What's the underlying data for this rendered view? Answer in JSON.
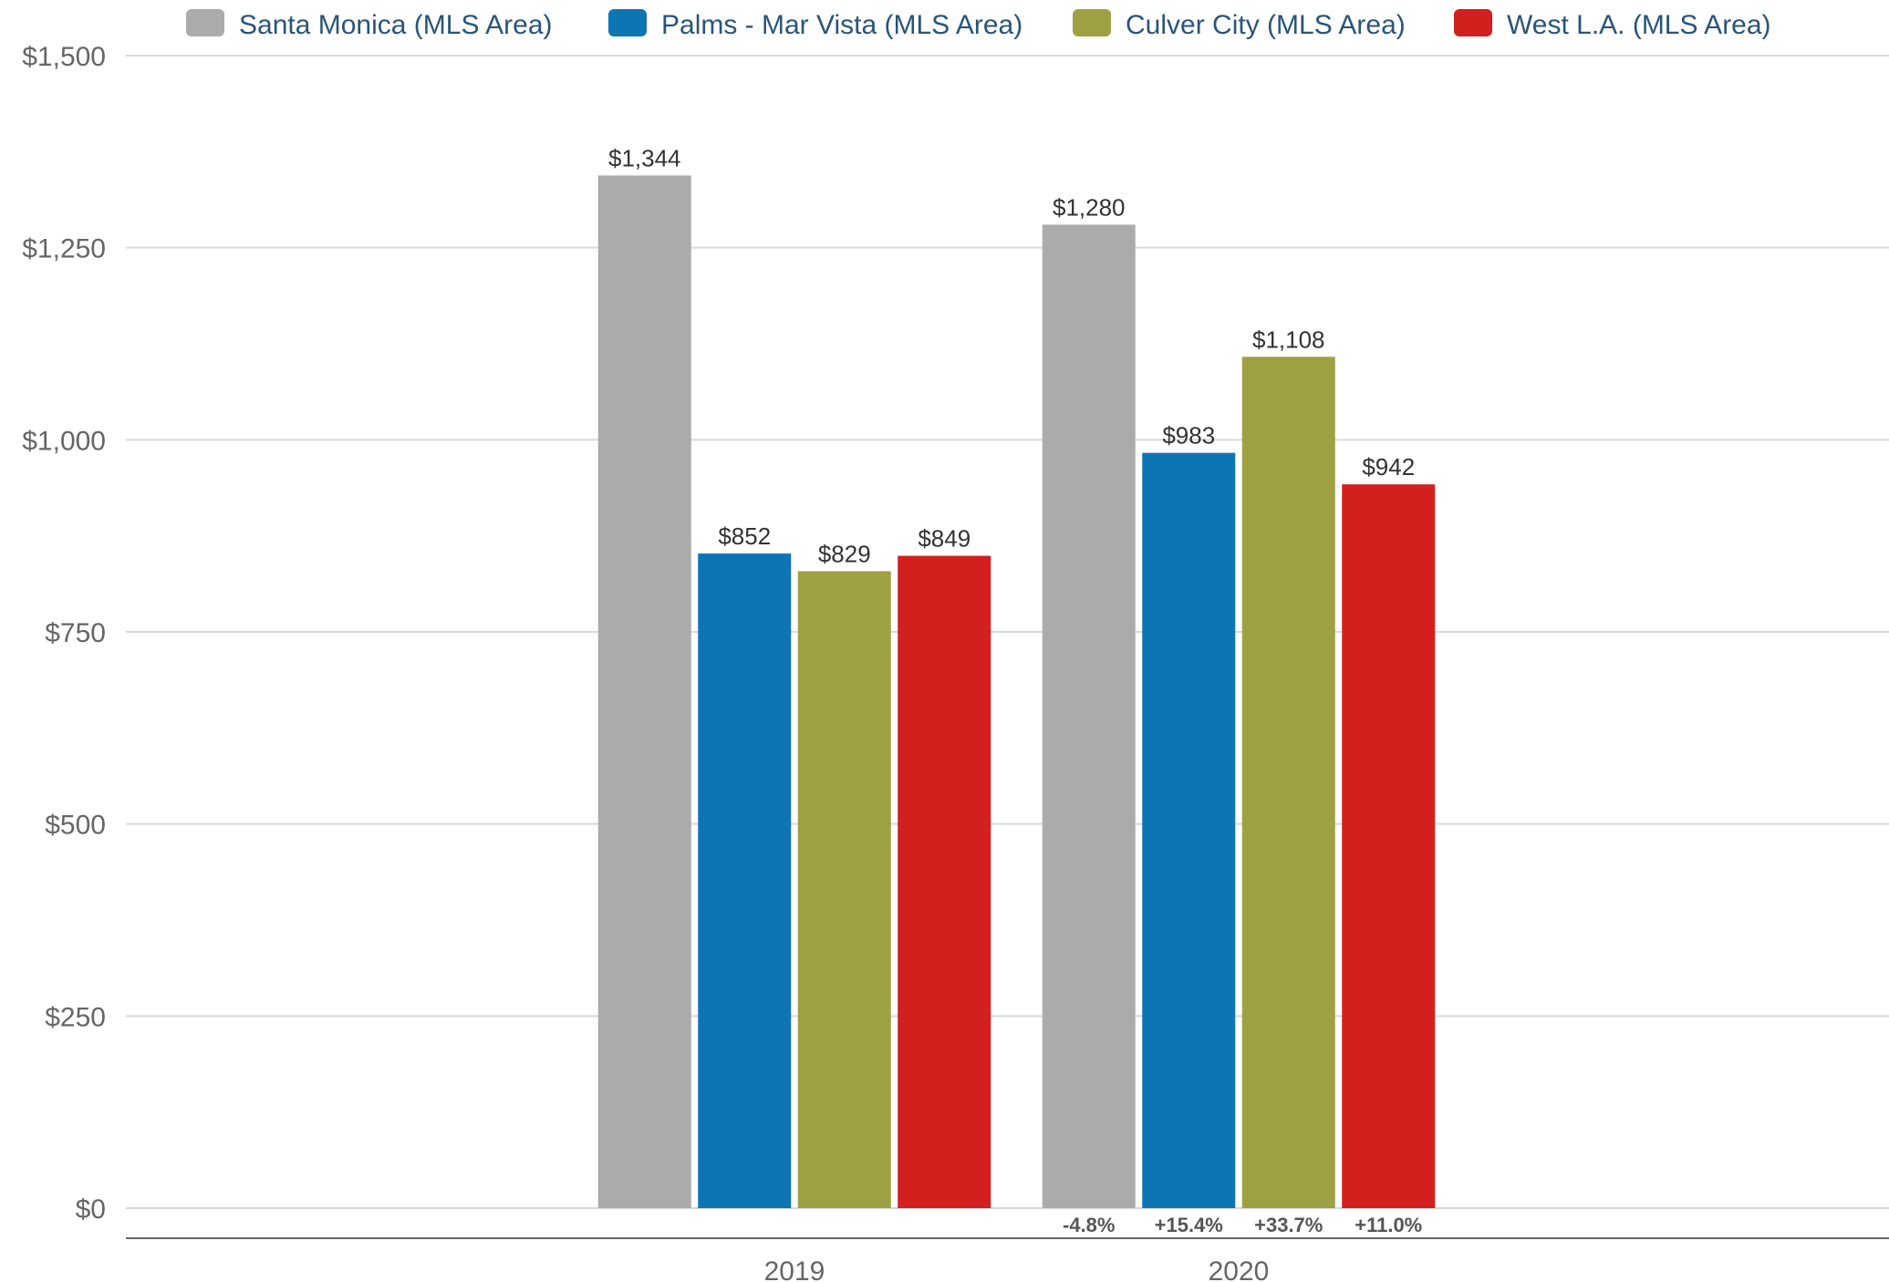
{
  "chart_data": {
    "type": "bar",
    "categories": [
      "2019",
      "2020"
    ],
    "series": [
      {
        "name": "Santa Monica (MLS Area)",
        "color": "#ababab",
        "values": [
          1344,
          1280
        ],
        "labels": [
          "$1,344",
          "$1,280"
        ]
      },
      {
        "name": "Palms - Mar Vista (MLS Area)",
        "color": "#0e75b5",
        "values": [
          852,
          983
        ],
        "labels": [
          "$852",
          "$983"
        ]
      },
      {
        "name": "Culver City (MLS Area)",
        "color": "#9fa042",
        "values": [
          829,
          1108
        ],
        "labels": [
          "$829",
          "$1,108"
        ]
      },
      {
        "name": "West L.A. (MLS Area)",
        "color": "#d41f1f",
        "values": [
          849,
          942
        ],
        "labels": [
          "$849",
          "$942"
        ]
      }
    ],
    "change_labels": [
      "-4.8%",
      "+15.4%",
      "+33.7%",
      "+11.0%"
    ],
    "y_ticks": [
      0,
      250,
      500,
      750,
      1000,
      1250,
      1500
    ],
    "y_tick_labels": [
      "$0",
      "$250",
      "$500",
      "$750",
      "$1,000",
      "$1,250",
      "$1,500"
    ],
    "ylim": [
      0,
      1500
    ],
    "title": "",
    "xlabel": "",
    "ylabel": "",
    "grid": true,
    "legend_position": "top"
  }
}
